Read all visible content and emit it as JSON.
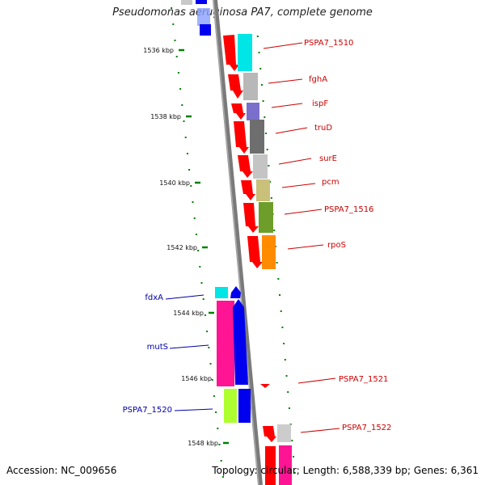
{
  "title": "Pseudomonas aeruginosa PA7, complete genome",
  "accession_label": "Accession: NC_009656",
  "topology_info": "Topology: circular; Length: 6,588,339 bp; Genes: 6,361",
  "axis_ticks": [
    "1536 kbp",
    "1538 kbp",
    "1540 kbp",
    "1542 kbp",
    "1544 kbp",
    "1546 kbp",
    "1548 kbp"
  ],
  "genes_forward": [
    {
      "name": "PSPA7_1510",
      "color": "#00e5e5"
    },
    {
      "name": "fghA",
      "color": "#b8b8b8"
    },
    {
      "name": "ispF",
      "color": "#7b6fcc"
    },
    {
      "name": "truD",
      "color": "#6e6e6e"
    },
    {
      "name": "surE",
      "color": "#c4c4c4"
    },
    {
      "name": "pcm",
      "color": "#c9c07a"
    },
    {
      "name": "PSPA7_1516",
      "color": "#6e9e2a"
    },
    {
      "name": "rpoS",
      "color": "#ff8c00"
    },
    {
      "name": "PSPA7_1521",
      "color": "#ff0000"
    },
    {
      "name": "PSPA7_1522",
      "color": "#cccccc"
    }
  ],
  "genes_reverse": [
    {
      "name": "fdxA",
      "color": "#00e5e5"
    },
    {
      "name": "mutS",
      "color": "#ff1493"
    },
    {
      "name": "PSPA7_1520",
      "color": "#adff2f"
    }
  ],
  "colors": {
    "forward_label": "#cc0000",
    "reverse_label": "#0000aa",
    "tick": "#008000",
    "backbone": "#808080"
  }
}
